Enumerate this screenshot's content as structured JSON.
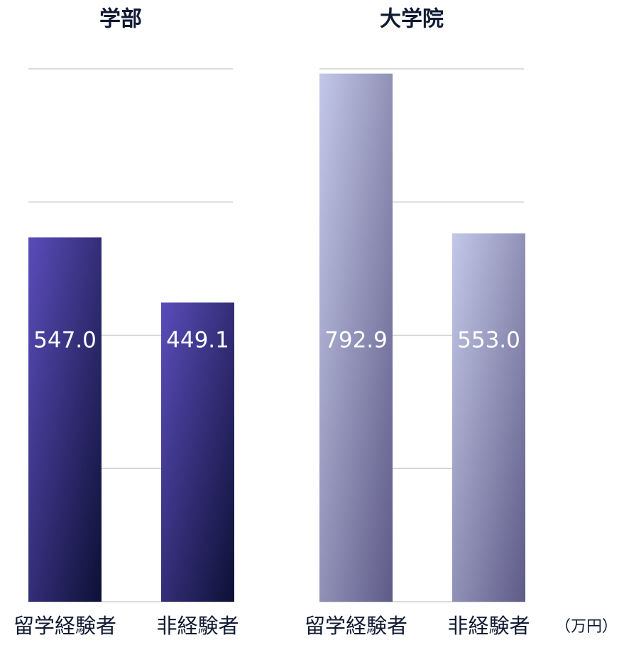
{
  "chart_data": [
    {
      "type": "bar",
      "title": "学部",
      "categories": [
        "留学経験者",
        "非経験者"
      ],
      "values": [
        547.0,
        449.1
      ],
      "value_labels": [
        "547.0",
        "449.1"
      ],
      "colors": [
        "#5b4cba",
        "#0c1035"
      ],
      "ylim": [
        0,
        800
      ],
      "yticks": [
        0,
        200,
        400,
        600,
        800
      ],
      "grid": true
    },
    {
      "type": "bar",
      "title": "大学院",
      "categories": [
        "留学経験者",
        "非経験者"
      ],
      "values": [
        792.9,
        553.0
      ],
      "value_labels": [
        "792.9",
        "553.0"
      ],
      "colors": [
        "#c3c8e8",
        "#5e5a87"
      ],
      "ylim": [
        0,
        800
      ],
      "yticks": [
        0,
        200,
        400,
        600,
        800
      ],
      "grid": true,
      "annotation": "（万円）"
    }
  ]
}
